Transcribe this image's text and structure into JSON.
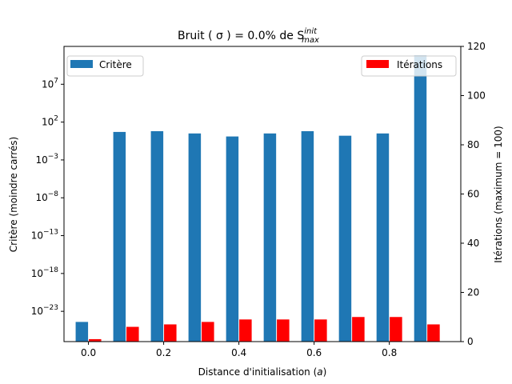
{
  "chart_data": {
    "type": "bar",
    "title": "Bruit ( σ ) = 0.0% de S",
    "title_sup": "init",
    "title_sub": "max",
    "xlabel": "Distance d'initialisation (a)",
    "xlabel_prefix": "Distance d'initialisation (",
    "xlabel_var": "a",
    "xlabel_suffix": ")",
    "ylabel_left": "Critère (moindre carrés)",
    "ylabel_right": "Itérations (maximum = 100)",
    "x": [
      0.0,
      0.1,
      0.2,
      0.3,
      0.4,
      0.5,
      0.6,
      0.7,
      0.8,
      0.9
    ],
    "xlim": [
      -0.065,
      0.99
    ],
    "xticks": [
      0.0,
      0.2,
      0.4,
      0.6,
      0.8
    ],
    "xtick_labels": [
      "0.0",
      "0.2",
      "0.4",
      "0.6",
      "0.8"
    ],
    "left_axis": {
      "scale": "log",
      "ylim_exp": [
        -27,
        12
      ],
      "tick_exponents": [
        -23,
        -18,
        -13,
        -8,
        -3,
        2,
        7
      ],
      "tick_labels_base": "10"
    },
    "right_axis": {
      "scale": "linear",
      "ylim": [
        0,
        120
      ],
      "ticks": [
        0,
        20,
        40,
        60,
        80,
        100,
        120
      ],
      "tick_labels": [
        "0",
        "20",
        "40",
        "60",
        "80",
        "100",
        "120"
      ]
    },
    "series": [
      {
        "name": "Critère",
        "axis": "left",
        "color": "#1f77b4",
        "offset": -0.0175,
        "width": 0.033,
        "log10_values": [
          -24.4,
          0.7,
          0.8,
          0.5,
          0.1,
          0.5,
          0.8,
          0.2,
          0.5,
          10.8
        ]
      },
      {
        "name": "Itérations",
        "axis": "right",
        "color": "#ff0000",
        "offset": 0.0175,
        "width": 0.033,
        "values": [
          1,
          6,
          7,
          8,
          9,
          9,
          9,
          10,
          10,
          7
        ]
      }
    ],
    "legend_left": "Critère",
    "legend_right": "Itérations",
    "legend_left_position": "upper-left",
    "legend_right_position": "upper-right",
    "grid": false
  }
}
